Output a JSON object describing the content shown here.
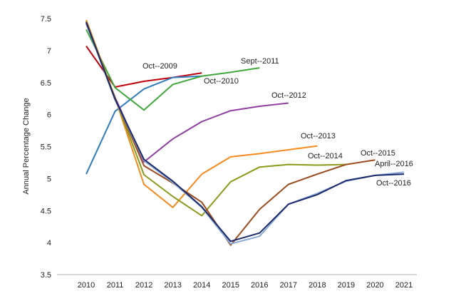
{
  "chart_data": {
    "type": "line",
    "title": "",
    "xlabel": "",
    "ylabel": "Annual Percentage Change",
    "x": [
      2010,
      2011,
      2012,
      2013,
      2014,
      2015,
      2016,
      2017,
      2018,
      2019,
      2020,
      2021
    ],
    "x_tick_labels": [
      "2010",
      "2011",
      "2012",
      "2013",
      "2014",
      "2015",
      "2016",
      "2017",
      "2018",
      "2019",
      "2020",
      "2021"
    ],
    "ylim": [
      3.5,
      7.5
    ],
    "y_ticks": [
      3.5,
      4,
      4.5,
      5,
      5.5,
      6,
      6.5,
      7,
      7.5
    ],
    "y_tick_labels": [
      "3.5",
      "4",
      "4.5",
      "5",
      "5.5",
      "6",
      "6.5",
      "7",
      "7.5"
    ],
    "grid": false,
    "legend": "inline labels",
    "series": [
      {
        "name": "Oct--2009",
        "color": "#c0000b",
        "points": [
          [
            2010,
            7.07
          ],
          [
            2011,
            6.43
          ],
          [
            2012,
            6.52
          ],
          [
            2013,
            6.58
          ],
          [
            2014,
            6.65
          ]
        ]
      },
      {
        "name": "Oct--2010",
        "color": "#2f7dbf",
        "points": [
          [
            2010,
            5.07
          ],
          [
            2011,
            6.05
          ],
          [
            2012,
            6.4
          ],
          [
            2013,
            6.58
          ],
          [
            2014,
            6.6
          ]
        ]
      },
      {
        "name": "Sept--2011",
        "color": "#3fa83c",
        "points": [
          [
            2010,
            7.33
          ],
          [
            2011,
            6.42
          ],
          [
            2012,
            6.07
          ],
          [
            2013,
            6.47
          ],
          [
            2014,
            6.6
          ],
          [
            2015,
            6.66
          ],
          [
            2016,
            6.73
          ]
        ]
      },
      {
        "name": "Oct--2012",
        "color": "#8e3fa0",
        "points": [
          [
            2010,
            7.42
          ],
          [
            2011,
            6.27
          ],
          [
            2012,
            5.26
          ],
          [
            2013,
            5.62
          ],
          [
            2014,
            5.89
          ],
          [
            2015,
            6.06
          ],
          [
            2016,
            6.13
          ],
          [
            2017,
            6.18
          ]
        ]
      },
      {
        "name": "Oct--2013",
        "color": "#f58a1f",
        "points": [
          [
            2010,
            7.48
          ],
          [
            2011,
            6.26
          ],
          [
            2012,
            4.91
          ],
          [
            2013,
            4.55
          ],
          [
            2014,
            5.07
          ],
          [
            2015,
            5.34
          ],
          [
            2016,
            5.39
          ],
          [
            2017,
            5.45
          ],
          [
            2018,
            5.51
          ]
        ]
      },
      {
        "name": "Oct--2014",
        "color": "#8c9a1a",
        "points": [
          [
            2010,
            7.46
          ],
          [
            2011,
            6.26
          ],
          [
            2012,
            5.06
          ],
          [
            2013,
            4.72
          ],
          [
            2014,
            4.42
          ],
          [
            2015,
            4.95
          ],
          [
            2016,
            5.18
          ],
          [
            2017,
            5.22
          ],
          [
            2018,
            5.21
          ],
          [
            2019,
            5.22
          ]
        ]
      },
      {
        "name": "Oct--2015",
        "color": "#9c4a1e",
        "points": [
          [
            2010,
            7.45
          ],
          [
            2011,
            6.25
          ],
          [
            2012,
            5.2
          ],
          [
            2013,
            4.93
          ],
          [
            2014,
            4.63
          ],
          [
            2015,
            3.96
          ],
          [
            2016,
            4.52
          ],
          [
            2017,
            4.91
          ],
          [
            2018,
            5.07
          ],
          [
            2019,
            5.22
          ],
          [
            2020,
            5.29
          ]
        ]
      },
      {
        "name": "April--2016",
        "color": "#8aa9d6",
        "points": [
          [
            2010,
            7.43
          ],
          [
            2011,
            6.23
          ],
          [
            2012,
            5.28
          ],
          [
            2013,
            4.94
          ],
          [
            2014,
            4.55
          ],
          [
            2015,
            3.98
          ],
          [
            2016,
            4.1
          ],
          [
            2017,
            4.6
          ],
          [
            2018,
            4.77
          ],
          [
            2019,
            4.96
          ],
          [
            2020,
            5.05
          ],
          [
            2021,
            5.1
          ]
        ]
      },
      {
        "name": "Oct--2016",
        "color": "#1b2a6b",
        "points": [
          [
            2010,
            7.44
          ],
          [
            2011,
            6.24
          ],
          [
            2012,
            5.3
          ],
          [
            2013,
            4.96
          ],
          [
            2014,
            4.56
          ],
          [
            2015,
            4.02
          ],
          [
            2016,
            4.15
          ],
          [
            2017,
            4.6
          ],
          [
            2018,
            4.75
          ],
          [
            2019,
            4.97
          ],
          [
            2020,
            5.05
          ],
          [
            2021,
            5.07
          ]
        ]
      }
    ]
  }
}
